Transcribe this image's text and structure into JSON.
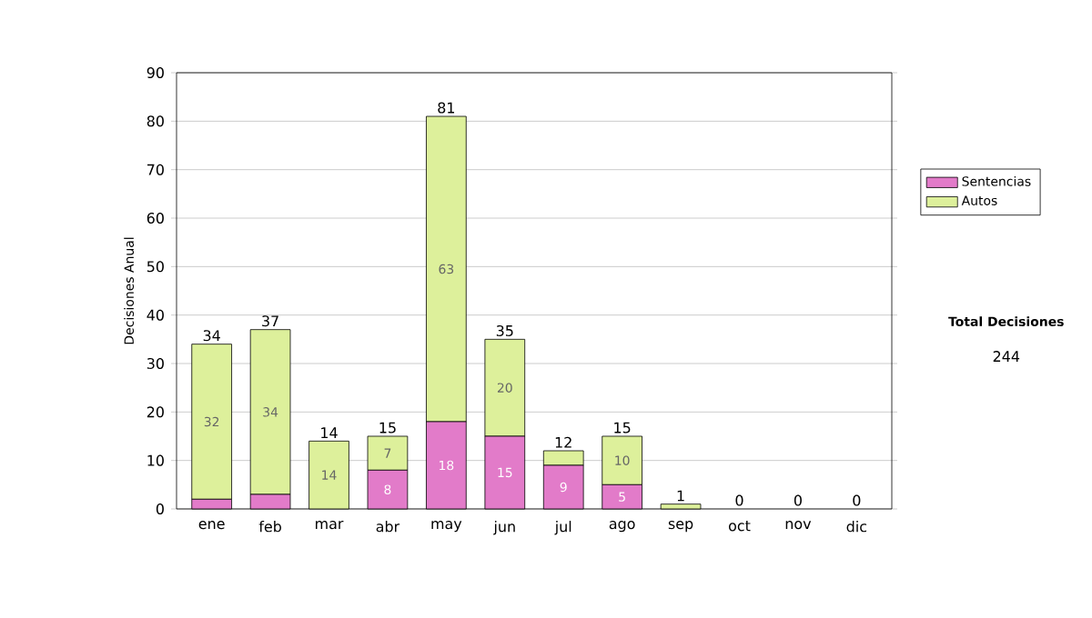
{
  "chart_data": {
    "type": "bar",
    "stacked": true,
    "ylabel": "Decisiones Anual",
    "categories": [
      "ene",
      "feb",
      "mar",
      "abr",
      "may",
      "jun",
      "jul",
      "ago",
      "sep",
      "oct",
      "nov",
      "dic"
    ],
    "series": [
      {
        "name": "Sentencias",
        "color": "#e27bc9",
        "values": [
          2,
          3,
          0,
          8,
          18,
          15,
          9,
          5,
          0,
          0,
          0,
          0
        ],
        "value_labels": [
          null,
          null,
          null,
          "8",
          "18",
          "15",
          "9",
          "5",
          null,
          null,
          null,
          null
        ]
      },
      {
        "name": "Autos",
        "color": "#ddf09b",
        "values": [
          32,
          34,
          14,
          7,
          63,
          20,
          3,
          10,
          1,
          0,
          0,
          0
        ],
        "value_labels": [
          "32",
          "34",
          "14",
          "7",
          "63",
          "20",
          null,
          "10",
          null,
          null,
          null,
          null
        ]
      }
    ],
    "totals": [
      "34",
      "37",
      "14",
      "15",
      "81",
      "35",
      "12",
      "15",
      "1",
      "0",
      "0",
      "0"
    ],
    "ylim": [
      0,
      90
    ],
    "yticks": [
      0,
      10,
      20,
      30,
      40,
      50,
      60,
      70,
      80,
      90
    ],
    "grid": "y",
    "legend": "right",
    "annotations": [
      "Total Decisiones",
      "244"
    ]
  }
}
